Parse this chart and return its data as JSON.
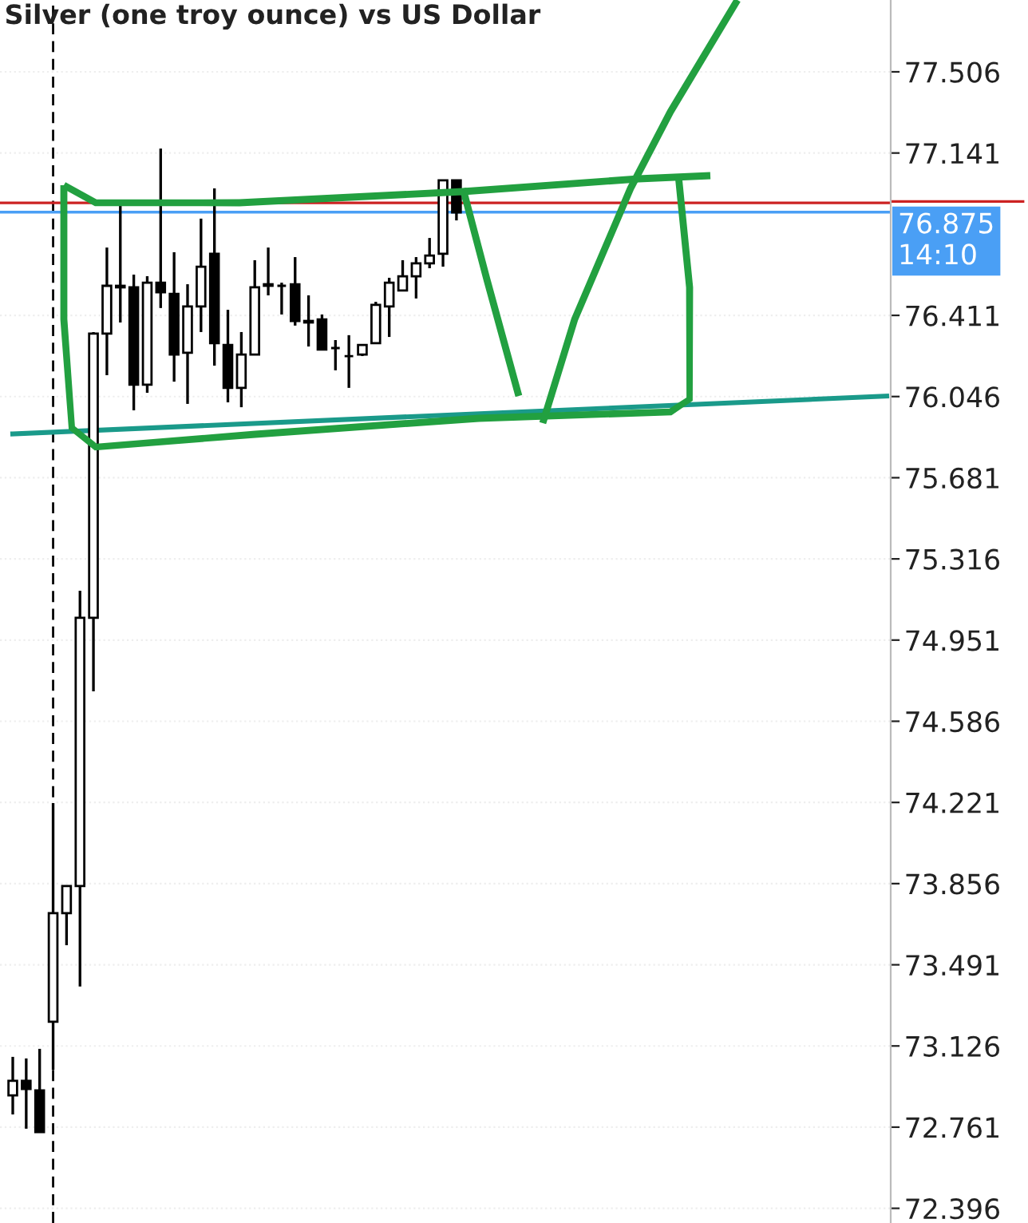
{
  "chart_data": {
    "type": "candlestick",
    "title": "Silver (one troy ounce) vs US Dollar",
    "categories": [
      null,
      null,
      null,
      null,
      null,
      null,
      null,
      null,
      null,
      null,
      null,
      null,
      null,
      null,
      null,
      null,
      null,
      null,
      null,
      null,
      null,
      null,
      null,
      null,
      null,
      null,
      null,
      null,
      null,
      null,
      null,
      null,
      null,
      null,
      null,
      null,
      null,
      null,
      null,
      null,
      null,
      null,
      null,
      null,
      null,
      null,
      null,
      null,
      null,
      null,
      null,
      null,
      null,
      null,
      null,
      null,
      null,
      null,
      null,
      null,
      null,
      null,
      null,
      null,
      null,
      null
    ],
    "ohlc": [
      [
        72.904,
        73.077,
        72.818,
        72.969
      ],
      [
        72.969,
        73.07,
        72.754,
        72.933
      ],
      [
        72.926,
        73.113,
        72.739,
        72.739
      ],
      [
        73.235,
        74.218,
        73.019,
        73.723
      ],
      [
        73.723,
        73.845,
        73.579,
        73.845
      ],
      [
        73.845,
        75.173,
        73.393,
        75.051
      ],
      [
        75.051,
        76.336,
        74.721,
        76.329
      ],
      [
        76.329,
        76.716,
        76.142,
        76.544
      ],
      [
        76.544,
        76.91,
        76.379,
        76.537
      ],
      [
        76.537,
        76.594,
        75.984,
        76.099
      ],
      [
        76.099,
        76.587,
        76.063,
        76.558
      ],
      [
        76.558,
        77.161,
        76.444,
        76.515
      ],
      [
        76.508,
        76.695,
        76.113,
        76.235
      ],
      [
        76.243,
        76.551,
        76.013,
        76.451
      ],
      [
        76.451,
        76.846,
        76.336,
        76.63
      ],
      [
        76.688,
        76.982,
        76.185,
        76.286
      ],
      [
        76.278,
        76.436,
        76.02,
        76.085
      ],
      [
        76.085,
        76.336,
        75.998,
        76.235
      ],
      [
        76.235,
        76.659,
        76.235,
        76.537
      ],
      [
        76.544,
        76.716,
        76.501,
        76.551
      ],
      [
        76.544,
        76.558,
        76.415,
        76.544
      ],
      [
        76.551,
        76.673,
        76.365,
        76.386
      ],
      [
        76.386,
        76.501,
        76.271,
        76.379
      ],
      [
        76.393,
        76.415,
        76.257,
        76.257
      ],
      [
        76.264,
        76.3,
        76.164,
        76.264
      ],
      [
        76.228,
        76.322,
        76.085,
        76.228
      ],
      [
        76.235,
        76.278,
        76.228,
        76.278
      ],
      [
        76.286,
        76.472,
        76.286,
        76.458
      ],
      [
        76.451,
        76.58,
        76.314,
        76.558
      ],
      [
        76.523,
        76.659,
        76.523,
        76.587
      ],
      [
        76.587,
        76.673,
        76.487,
        76.645
      ],
      [
        76.645,
        76.759,
        76.623,
        76.68
      ],
      [
        76.688,
        77.018,
        76.63,
        77.018
      ],
      [
        77.018,
        77.018,
        76.838,
        76.874
      ],
      null,
      null,
      null,
      null,
      null,
      null,
      null,
      null,
      null,
      null,
      null,
      null,
      null,
      null,
      null,
      null,
      null,
      null,
      null,
      null,
      null,
      null,
      null,
      null,
      null,
      null,
      null,
      null,
      null,
      null,
      null,
      null
    ],
    "color": "#000000",
    "series": [
      {
        "type": "line",
        "color": "#1a9a8a",
        "values": [
          75.878,
          null,
          null,
          null,
          null,
          null,
          null,
          null,
          null,
          null,
          null,
          null,
          null,
          null,
          null,
          null,
          null,
          null,
          null,
          null,
          null,
          null,
          null,
          null,
          null,
          null,
          null,
          null,
          null,
          null,
          null,
          null,
          null,
          null,
          null,
          null,
          null,
          null,
          null,
          null,
          null,
          null,
          null,
          null,
          null,
          null,
          null,
          null,
          null,
          null,
          null,
          null,
          null,
          null,
          null,
          null,
          null,
          null,
          null,
          null,
          null,
          null,
          null,
          null,
          null,
          76.048
        ]
      }
    ],
    "ylim": [
      72.33,
      77.829
    ],
    "yticks": [
      72.396,
      72.761,
      73.126,
      73.491,
      73.856,
      74.221,
      74.586,
      74.951,
      75.316,
      75.681,
      76.046,
      76.411,
      77.141,
      77.506
    ],
    "ref_lines": [
      {
        "axis": "y",
        "value": 76.917,
        "color": "#cc2222"
      },
      {
        "axis": "y",
        "value": 76.875,
        "label": "76.875\n14:10",
        "color": "#4a9ff5"
      }
    ],
    "grid": true
  }
}
